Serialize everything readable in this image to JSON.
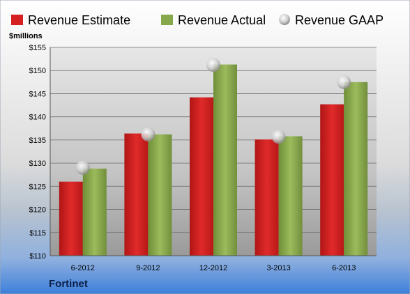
{
  "chart_data": {
    "type": "bar",
    "company": "Fortinet",
    "ylabel": "$millions",
    "categories": [
      "6-2012",
      "9-2012",
      "12-2012",
      "3-2013",
      "6-2013"
    ],
    "series": [
      {
        "name": "Revenue Estimate",
        "kind": "bar",
        "color": "#d42020",
        "values": [
          126.0,
          136.4,
          144.2,
          135.1,
          142.7
        ]
      },
      {
        "name": "Revenue Actual",
        "kind": "bar",
        "color": "#86a84a",
        "values": [
          128.8,
          136.2,
          151.3,
          135.8,
          147.5
        ]
      },
      {
        "name": "Revenue GAAP",
        "kind": "marker",
        "color": "#c8c8c8",
        "values": [
          129.0,
          136.2,
          151.2,
          135.7,
          147.5
        ]
      }
    ],
    "ylim": [
      110,
      155
    ],
    "yticks": [
      110,
      115,
      120,
      125,
      130,
      135,
      140,
      145,
      150,
      155
    ],
    "ytick_labels": [
      "$110",
      "$115",
      "$120",
      "$125",
      "$130",
      "$135",
      "$140",
      "$145",
      "$150",
      "$155"
    ],
    "grid": true,
    "legend_position": "top"
  }
}
